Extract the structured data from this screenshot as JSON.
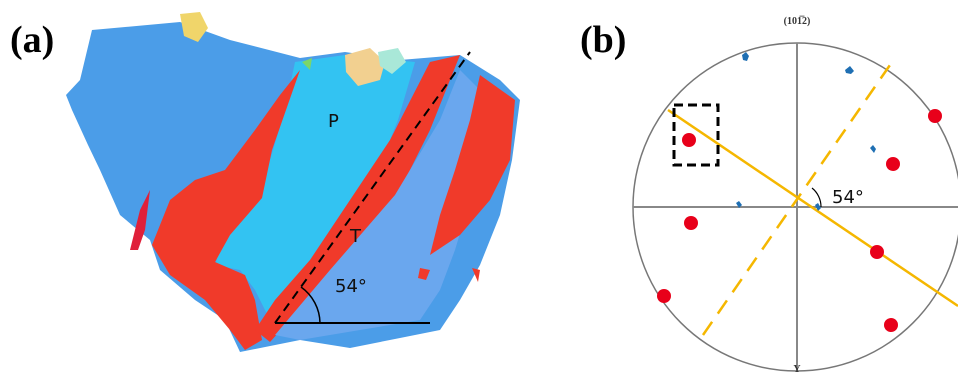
{
  "panel_a": {
    "label": "(a)",
    "grain_labels": [
      "P",
      "T"
    ],
    "angle": "54°"
  },
  "panel_b": {
    "label": "(b)",
    "title": "(101̅2)",
    "angle": "54°",
    "axis_label": "Y"
  }
}
